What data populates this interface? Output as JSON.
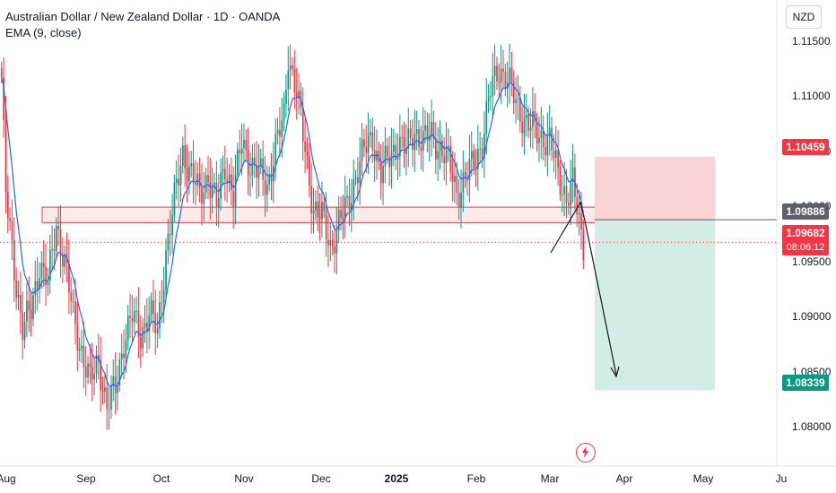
{
  "legend": {
    "symbol": "Australian Dollar / New Zealand Dollar · 1D · OANDA",
    "indicator": "EMA (9, close)"
  },
  "currency_button": "NZD",
  "tags": {
    "stop": "1.10459",
    "entry": "1.09886",
    "last": "1.09682",
    "countdown": "08:06:12",
    "target": "1.08339"
  },
  "colors": {
    "up": "#089981",
    "down": "#f23645",
    "ema": "#2962ff",
    "stop_zone": "#f9d3d6",
    "target_zone": "#d2ece6",
    "box_fill": "#fde9ea",
    "box_border": "#f23645"
  },
  "icons": {
    "flash": "flash-icon"
  },
  "chart_data": {
    "type": "candlestick",
    "title": "Australian Dollar / New Zealand Dollar · 1D · OANDA",
    "indicator": "EMA (9, close)",
    "x_tick_labels": [
      "Aug",
      "Sep",
      "Oct",
      "Nov",
      "Dec",
      "2025",
      "Feb",
      "Mar",
      "Apr",
      "May",
      "Ju"
    ],
    "y_tick_labels": [
      "1.08000",
      "1.08500",
      "1.09000",
      "1.09500",
      "1.10000",
      "1.10500",
      "1.11000",
      "1.11500"
    ],
    "ylim": [
      1.0765,
      1.1188
    ],
    "grid": false,
    "close_path": [
      [
        0,
        1.1118
      ],
      [
        2,
        1.101
      ],
      [
        6,
        1.0945
      ],
      [
        10,
        1.089
      ],
      [
        14,
        1.0905
      ],
      [
        18,
        1.095
      ],
      [
        22,
        1.093
      ],
      [
        26,
        1.0985
      ],
      [
        30,
        1.095
      ],
      [
        34,
        1.09
      ],
      [
        38,
        1.087
      ],
      [
        42,
        1.084
      ],
      [
        46,
        1.0862
      ],
      [
        50,
        1.0818
      ],
      [
        54,
        1.0835
      ],
      [
        58,
        1.088
      ],
      [
        62,
        1.09
      ],
      [
        66,
        1.0885
      ],
      [
        70,
        1.0905
      ],
      [
        74,
        1.0885
      ],
      [
        78,
        1.096
      ],
      [
        82,
        1.1005
      ],
      [
        86,
        1.105
      ],
      [
        90,
        1.103
      ],
      [
        94,
        1.101
      ],
      [
        98,
        1.103
      ],
      [
        102,
        1.1
      ],
      [
        106,
        1.104
      ],
      [
        110,
        1.101
      ],
      [
        114,
        1.106
      ],
      [
        118,
        1.104
      ],
      [
        122,
        1.103
      ],
      [
        126,
        1.102
      ],
      [
        130,
        1.1055
      ],
      [
        134,
        1.108
      ],
      [
        136,
        1.114
      ],
      [
        140,
        1.1105
      ],
      [
        144,
        1.105
      ],
      [
        148,
        1.1
      ],
      [
        152,
        1.099
      ],
      [
        156,
        1.0965
      ],
      [
        160,
        1.0985
      ],
      [
        164,
        1.1
      ],
      [
        168,
        1.103
      ],
      [
        172,
        1.105
      ],
      [
        176,
        1.1065
      ],
      [
        180,
        1.103
      ],
      [
        184,
        1.1045
      ],
      [
        188,
        1.106
      ],
      [
        192,
        1.105
      ],
      [
        196,
        1.107
      ],
      [
        200,
        1.106
      ],
      [
        204,
        1.1065
      ],
      [
        208,
        1.1055
      ],
      [
        212,
        1.104
      ],
      [
        216,
        1.1015
      ],
      [
        220,
        1.1025
      ],
      [
        224,
        1.104
      ],
      [
        228,
        1.106
      ],
      [
        232,
        1.1105
      ],
      [
        236,
        1.1128
      ],
      [
        240,
        1.1115
      ],
      [
        244,
        1.1095
      ],
      [
        248,
        1.108
      ],
      [
        252,
        1.107
      ],
      [
        256,
        1.1065
      ],
      [
        260,
        1.106
      ],
      [
        264,
        1.103
      ],
      [
        268,
        1.101
      ],
      [
        271,
        1.102
      ],
      [
        274,
        1.0985
      ],
      [
        276,
        1.0968
      ]
    ],
    "position": {
      "direction": "short",
      "entry": 1.09886,
      "stop": 1.10459,
      "target": 1.08339,
      "last_price": 1.09682,
      "countdown": "08:06:12"
    },
    "zone": [
      1.0986,
      1.1
    ]
  }
}
